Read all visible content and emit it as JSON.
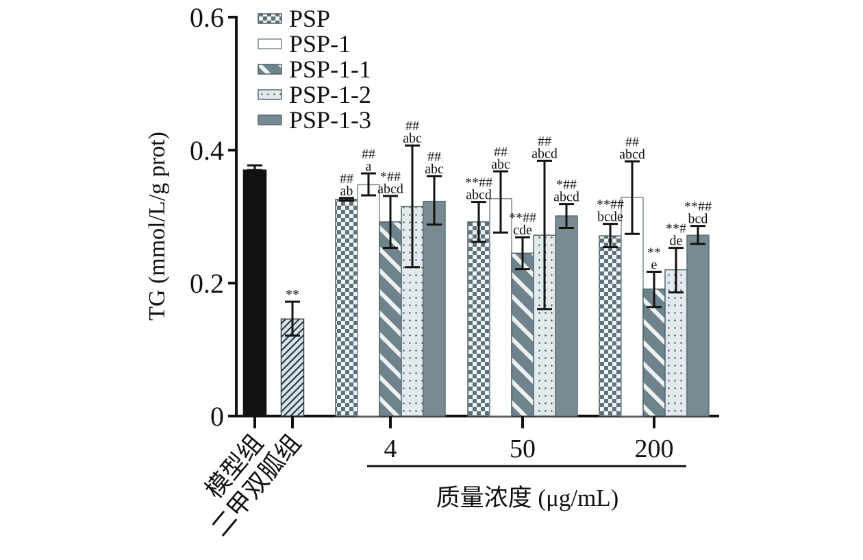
{
  "chart_data": {
    "type": "bar",
    "title": "",
    "ylabel": "TG (mmol/L/g prot)",
    "xlabel": "质量浓度 (μg/mL)",
    "ylim": [
      0,
      0.6
    ],
    "yticks": [
      0,
      0.2,
      0.4,
      0.6
    ],
    "ytick_labels": [
      "0",
      "0.2",
      "0.4",
      "0.6"
    ],
    "grid": false,
    "legend_position": "top-left",
    "controls": [
      {
        "label": "模型组",
        "value": 0.37,
        "err_high": 0.377,
        "err_low": 0.37,
        "annotation": [],
        "color": "#111111",
        "pattern": "solid-black"
      },
      {
        "label": "二甲双胍组",
        "value": 0.146,
        "err_high": 0.172,
        "err_low": 0.121,
        "annotation": [
          "**"
        ],
        "color": "#cfdde2",
        "pattern": "diagonal-hatch"
      }
    ],
    "categories": [
      "4",
      "50",
      "200"
    ],
    "series": [
      {
        "name": "PSP",
        "pattern": "checker",
        "color": "#5f727b",
        "values": [
          0.326,
          0.292,
          0.271
        ],
        "err_high": [
          0.328,
          0.322,
          0.289
        ],
        "err_low": [
          0.324,
          0.262,
          0.254
        ],
        "annotations": [
          [
            "##",
            "ab"
          ],
          [
            "**##",
            "abcd"
          ],
          [
            "**##",
            "bcde"
          ]
        ]
      },
      {
        "name": "PSP-1",
        "pattern": "white",
        "color": "#ffffff",
        "values": [
          0.348,
          0.327,
          0.329
        ],
        "err_high": [
          0.365,
          0.368,
          0.383
        ],
        "err_low": [
          0.332,
          0.276,
          0.274
        ],
        "annotations": [
          [
            "##",
            "a"
          ],
          [
            "##",
            "abc"
          ],
          [
            "##",
            "abcd"
          ]
        ]
      },
      {
        "name": "PSP-1-1",
        "pattern": "wide-diagonal",
        "color": "#6f838c",
        "values": [
          0.292,
          0.245,
          0.191
        ],
        "err_high": [
          0.331,
          0.269,
          0.217
        ],
        "err_low": [
          0.253,
          0.221,
          0.164
        ],
        "annotations": [
          [
            "*##",
            "abcd"
          ],
          [
            "**##",
            "cde"
          ],
          [
            "**",
            "e"
          ]
        ]
      },
      {
        "name": "PSP-1-2",
        "pattern": "dots",
        "color": "#dfe8eb",
        "values": [
          0.315,
          0.272,
          0.22
        ],
        "err_high": [
          0.407,
          0.384,
          0.253
        ],
        "err_low": [
          0.224,
          0.161,
          0.186
        ],
        "annotations": [
          [
            "##",
            "abc"
          ],
          [
            "##",
            "abcd"
          ],
          [
            "**#",
            "de"
          ]
        ]
      },
      {
        "name": "PSP-1-3",
        "pattern": "solid-gray",
        "color": "#788a92",
        "values": [
          0.323,
          0.301,
          0.272
        ],
        "err_high": [
          0.361,
          0.319,
          0.286
        ],
        "err_low": [
          0.288,
          0.283,
          0.259
        ],
        "annotations": [
          [
            "##",
            "abc"
          ],
          [
            "*##",
            "abcd"
          ],
          [
            "**##",
            "bcd"
          ]
        ]
      }
    ]
  }
}
